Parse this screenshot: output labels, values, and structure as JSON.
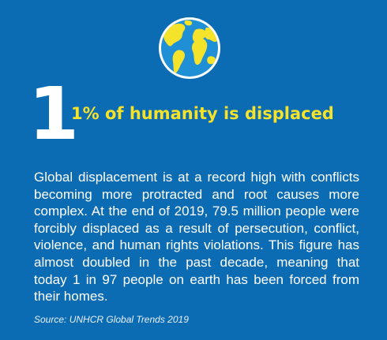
{
  "globe": {
    "icon": "globe-icon",
    "ocean_color": "#1f8fd6",
    "land_color": "#f5e22a",
    "outline_color": "#ffffff"
  },
  "stat": {
    "number": "1",
    "headline": "1% of humanity is displaced"
  },
  "body": {
    "text": "Global displacement is at a record high with conflicts becoming more protracted and root causes more complex. At the end of 2019, 79.5 million people were forcibly displaced as a result of persecution, conflict, violence, and human rights violations. This figure has almost doubled in the past decade, meaning that today 1 in 97 people on earth has been forced from their homes."
  },
  "source": {
    "text": "Source: UNHCR Global Trends 2019"
  },
  "colors": {
    "background": "#0b6bb3",
    "headline": "#f5e22a",
    "text": "#ffffff"
  }
}
